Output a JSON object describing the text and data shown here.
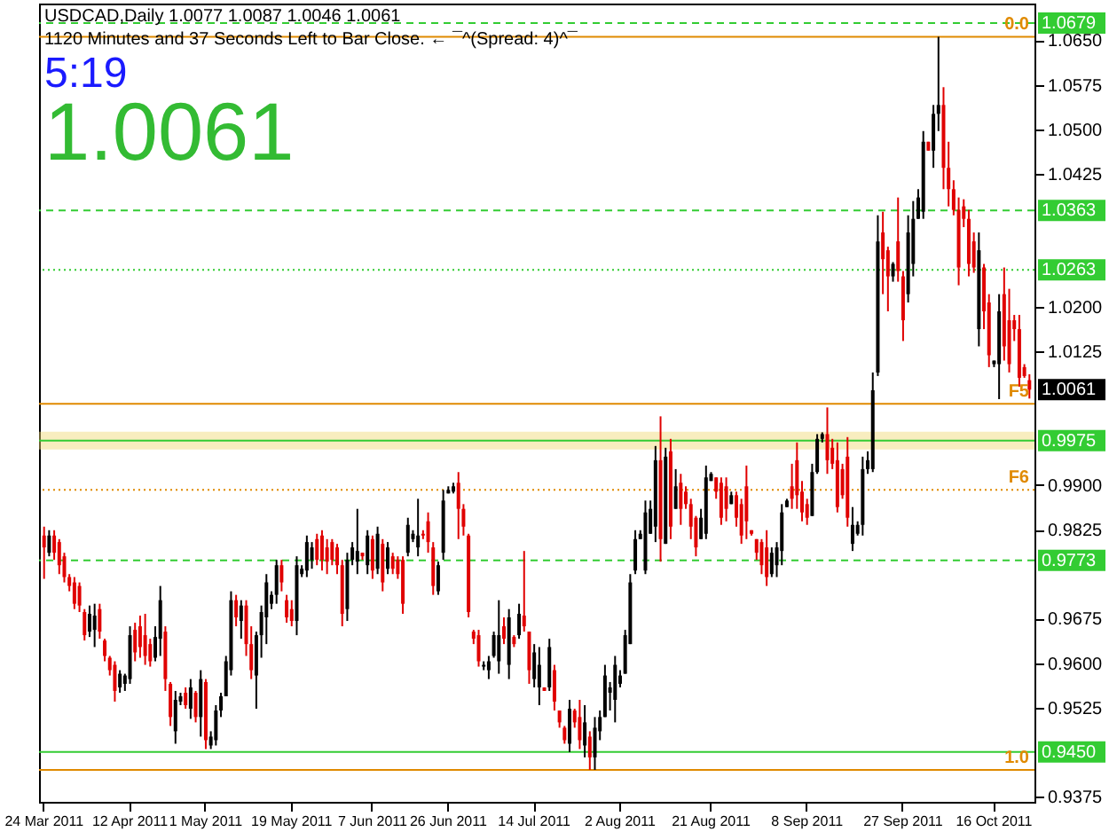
{
  "chart_data": {
    "type": "candlestick",
    "title": "USDCAD,Daily  1.0077 1.0087 1.0046 1.0061",
    "subtitle": "1120 Minutes and 37 Seconds Left to Bar Close. ← ¯^(Spread: 4)^¯",
    "annotations": [
      "5:19",
      "1.0061",
      {
        "text": "1.0061",
        "y": 1.0061
      },
      {
        "text": "0.0",
        "y": 1.0656
      },
      {
        "text": "F5",
        "y": 1.0037
      },
      {
        "text": "F6",
        "y": 0.9892
      },
      {
        "text": "1.0",
        "y": 0.942
      }
    ],
    "categories": [
      "24 Mar 2011",
      null,
      null,
      null,
      null,
      null,
      null,
      null,
      null,
      null,
      null,
      null,
      null,
      null,
      null,
      null,
      null,
      "12 Apr 2011",
      null,
      null,
      null,
      null,
      null,
      null,
      null,
      null,
      null,
      null,
      null,
      null,
      null,
      null,
      "1 May 2011",
      null,
      null,
      null,
      null,
      null,
      null,
      null,
      null,
      null,
      null,
      null,
      null,
      null,
      null,
      null,
      null,
      "19 May 2011",
      null,
      null,
      null,
      null,
      null,
      null,
      null,
      null,
      null,
      null,
      null,
      null,
      null,
      null,
      null,
      "7 Jun 2011",
      null,
      null,
      null,
      null,
      null,
      null,
      null,
      null,
      null,
      null,
      null,
      null,
      null,
      null,
      "26 Jun 2011",
      null,
      null,
      null,
      null,
      null,
      null,
      null,
      null,
      null,
      null,
      null,
      null,
      null,
      null,
      null,
      null,
      "14 Jul 2011",
      null,
      null,
      null,
      null,
      null,
      null,
      null,
      null,
      null,
      null,
      null,
      null,
      null,
      null,
      null,
      null,
      "2 Aug 2011",
      null,
      null,
      null,
      null,
      null,
      null,
      null,
      null,
      null,
      null,
      null,
      null,
      null,
      null,
      null,
      null,
      null,
      "21 Aug 2011",
      null,
      null,
      null,
      null,
      null,
      null,
      null,
      null,
      null,
      null,
      null,
      null,
      null,
      null,
      null,
      null,
      null,
      null,
      "8 Sep 2011",
      null,
      null,
      null,
      null,
      null,
      null,
      null,
      null,
      null,
      null,
      null,
      null,
      null,
      null,
      null,
      null,
      null,
      null,
      "27 Sep 2011",
      null,
      null,
      null,
      null,
      null,
      null,
      null,
      null,
      null,
      null,
      null,
      null,
      null,
      null,
      null,
      null,
      null,
      "16 Oct 2011",
      null,
      null,
      null,
      null,
      null,
      null,
      null
    ],
    "ohlc": [
      [
        0.9815,
        0.983,
        0.9742,
        0.9795
      ],
      [
        0.9786,
        0.9824,
        0.978,
        0.9815
      ],
      [
        0.9815,
        0.9824,
        0.9774,
        0.9786
      ],
      [
        0.9804,
        0.9809,
        0.975,
        0.9765
      ],
      [
        0.978,
        0.9786,
        0.9736,
        0.9745
      ],
      [
        0.9745,
        0.975,
        0.9721,
        0.973
      ],
      [
        0.9736,
        0.9745,
        0.9691,
        0.97
      ],
      [
        0.973,
        0.9736,
        0.9686,
        0.9697
      ],
      [
        0.9686,
        0.9691,
        0.9638,
        0.9647
      ],
      [
        0.9653,
        0.9697,
        0.9644,
        0.9683
      ],
      [
        0.9656,
        0.97,
        0.9627,
        0.968
      ],
      [
        0.9691,
        0.97,
        0.9641,
        0.9653
      ],
      [
        0.9638,
        0.9641,
        0.9603,
        0.9612
      ],
      [
        0.9609,
        0.9612,
        0.9579,
        0.9588
      ],
      [
        0.9597,
        0.9603,
        0.9535,
        0.9553
      ],
      [
        0.9559,
        0.9588,
        0.955,
        0.9582
      ],
      [
        0.9565,
        0.9582,
        0.9553,
        0.9579
      ],
      [
        0.9573,
        0.9662,
        0.9565,
        0.9647
      ],
      [
        0.9656,
        0.9668,
        0.9603,
        0.9618
      ],
      [
        0.9662,
        0.968,
        0.9609,
        0.9627
      ],
      [
        0.9647,
        0.9683,
        0.9597,
        0.9612
      ],
      [
        0.9632,
        0.9641,
        0.9594,
        0.9603
      ],
      [
        0.9609,
        0.9662,
        0.9603,
        0.9644
      ],
      [
        0.9641,
        0.973,
        0.9612,
        0.9706
      ],
      [
        0.9653,
        0.9662,
        0.9553,
        0.9573
      ],
      [
        0.9565,
        0.9568,
        0.9494,
        0.9509
      ],
      [
        0.9485,
        0.9553,
        0.9464,
        0.9538
      ],
      [
        0.9535,
        0.955,
        0.9529,
        0.9544
      ],
      [
        0.955,
        0.9559,
        0.9523,
        0.9529
      ],
      [
        0.9523,
        0.9573,
        0.9506,
        0.9559
      ],
      [
        0.955,
        0.9553,
        0.95,
        0.9509
      ],
      [
        0.9509,
        0.9588,
        0.9476,
        0.9573
      ],
      [
        0.9568,
        0.9573,
        0.9455,
        0.947
      ],
      [
        0.9461,
        0.9485,
        0.9455,
        0.9476
      ],
      [
        0.947,
        0.9529,
        0.9461,
        0.952
      ],
      [
        0.952,
        0.955,
        0.9509,
        0.9544
      ],
      [
        0.9544,
        0.9612,
        0.9544,
        0.9603
      ],
      [
        0.9588,
        0.9721,
        0.9579,
        0.9706
      ],
      [
        0.9706,
        0.9715,
        0.9662,
        0.9677
      ],
      [
        0.9671,
        0.9706,
        0.9641,
        0.9697
      ],
      [
        0.9697,
        0.9706,
        0.9612,
        0.9632
      ],
      [
        0.9632,
        0.9662,
        0.9573,
        0.9588
      ],
      [
        0.9579,
        0.9653,
        0.9523,
        0.9647
      ],
      [
        0.9647,
        0.9697,
        0.9609,
        0.9686
      ],
      [
        0.9677,
        0.975,
        0.9632,
        0.9736
      ],
      [
        0.97,
        0.9721,
        0.9691,
        0.9715
      ],
      [
        0.9715,
        0.9774,
        0.97,
        0.9765
      ],
      [
        0.9765,
        0.9774,
        0.9721,
        0.9736
      ],
      [
        0.9706,
        0.9715,
        0.9668,
        0.9677
      ],
      [
        0.9691,
        0.9706,
        0.9662,
        0.9671
      ],
      [
        0.9671,
        0.978,
        0.9647,
        0.9765
      ],
      [
        0.975,
        0.9765,
        0.9745,
        0.9759
      ],
      [
        0.9756,
        0.9815,
        0.9745,
        0.9804
      ],
      [
        0.9774,
        0.9804,
        0.9759,
        0.9795
      ],
      [
        0.9809,
        0.9818,
        0.9765,
        0.9774
      ],
      [
        0.9815,
        0.9824,
        0.9756,
        0.9774
      ],
      [
        0.9795,
        0.9809,
        0.975,
        0.9771
      ],
      [
        0.9804,
        0.9809,
        0.9765,
        0.9774
      ],
      [
        0.9795,
        0.9801,
        0.975,
        0.9765
      ],
      [
        0.9765,
        0.9774,
        0.9662,
        0.9683
      ],
      [
        0.9691,
        0.9786,
        0.9671,
        0.9774
      ],
      [
        0.9774,
        0.9804,
        0.9765,
        0.9795
      ],
      [
        0.9771,
        0.986,
        0.975,
        0.9789
      ],
      [
        0.9786,
        0.9786,
        0.9774,
        0.978
      ],
      [
        0.9765,
        0.9824,
        0.975,
        0.9815
      ],
      [
        0.9809,
        0.9815,
        0.9742,
        0.9756
      ],
      [
        0.9759,
        0.983,
        0.975,
        0.9818
      ],
      [
        0.9801,
        0.9809,
        0.9721,
        0.9736
      ],
      [
        0.9759,
        0.9804,
        0.975,
        0.9795
      ],
      [
        0.978,
        0.9786,
        0.975,
        0.9759
      ],
      [
        0.9774,
        0.978,
        0.9742,
        0.975
      ],
      [
        0.9774,
        0.978,
        0.9683,
        0.97
      ],
      [
        0.9786,
        0.9845,
        0.978,
        0.9833
      ],
      [
        0.9809,
        0.9824,
        0.9804,
        0.9818
      ],
      [
        0.9795,
        0.9877,
        0.978,
        0.9815
      ],
      [
        0.9818,
        0.9824,
        0.9809,
        0.9815
      ],
      [
        0.9839,
        0.9854,
        0.9786,
        0.9804
      ],
      [
        0.9795,
        0.9804,
        0.9715,
        0.973
      ],
      [
        0.9721,
        0.9771,
        0.9715,
        0.9765
      ],
      [
        0.9786,
        0.9892,
        0.9774,
        0.9874
      ],
      [
        0.9886,
        0.9898,
        0.9886,
        0.9892
      ],
      [
        0.9889,
        0.9904,
        0.9886,
        0.9898
      ],
      [
        0.9904,
        0.9922,
        0.9809,
        0.986
      ],
      [
        0.986,
        0.9868,
        0.9815,
        0.983
      ],
      [
        0.9815,
        0.9818,
        0.9677,
        0.9686
      ],
      [
        0.9653,
        0.9656,
        0.9632,
        0.9641
      ],
      [
        0.9647,
        0.9656,
        0.9594,
        0.9603
      ],
      [
        0.9594,
        0.9603,
        0.9588,
        0.9597
      ],
      [
        0.9588,
        0.9612,
        0.9573,
        0.9603
      ],
      [
        0.9612,
        0.9653,
        0.9609,
        0.9647
      ],
      [
        0.9603,
        0.9706,
        0.9582,
        0.9647
      ],
      [
        0.9662,
        0.9677,
        0.9632,
        0.9641
      ],
      [
        0.9597,
        0.9691,
        0.9573,
        0.9677
      ],
      [
        0.9644,
        0.9647,
        0.9627,
        0.9632
      ],
      [
        0.9647,
        0.97,
        0.9641,
        0.9683
      ],
      [
        0.968,
        0.9789,
        0.9653,
        0.9662
      ],
      [
        0.9653,
        0.9653,
        0.9565,
        0.9588
      ],
      [
        0.9573,
        0.9632,
        0.9559,
        0.9618
      ],
      [
        0.9559,
        0.9627,
        0.9529,
        0.9597
      ],
      [
        0.9559,
        0.9559,
        0.9553,
        0.9553
      ],
      [
        0.9559,
        0.9641,
        0.9553,
        0.9627
      ],
      [
        0.9588,
        0.9597,
        0.952,
        0.9535
      ],
      [
        0.952,
        0.952,
        0.9491,
        0.95
      ],
      [
        0.9491,
        0.9494,
        0.9464,
        0.947
      ],
      [
        0.9464,
        0.9538,
        0.945,
        0.9523
      ],
      [
        0.952,
        0.9523,
        0.9491,
        0.95
      ],
      [
        0.9509,
        0.9538,
        0.9455,
        0.947
      ],
      [
        0.9461,
        0.9529,
        0.9441,
        0.95
      ],
      [
        0.9476,
        0.9485,
        0.942,
        0.9441
      ],
      [
        0.9441,
        0.9509,
        0.942,
        0.9491
      ],
      [
        0.9485,
        0.952,
        0.947,
        0.9509
      ],
      [
        0.9509,
        0.9597,
        0.9509,
        0.9579
      ],
      [
        0.955,
        0.9568,
        0.952,
        0.9559
      ],
      [
        0.9538,
        0.9612,
        0.95,
        0.9597
      ],
      [
        0.9565,
        0.9588,
        0.9559,
        0.9579
      ],
      [
        0.9582,
        0.9656,
        0.9582,
        0.9647
      ],
      [
        0.9632,
        0.975,
        0.9632,
        0.9736
      ],
      [
        0.9756,
        0.9824,
        0.975,
        0.9809
      ],
      [
        0.9809,
        0.9824,
        0.9809,
        0.9818
      ],
      [
        0.9756,
        0.9874,
        0.975,
        0.9854
      ],
      [
        0.9818,
        0.9874,
        0.9818,
        0.986
      ],
      [
        0.983,
        0.9966,
        0.9804,
        0.9942
      ],
      [
        0.9942,
        1.0016,
        0.9771,
        0.9809
      ],
      [
        0.9801,
        0.9963,
        0.9801,
        0.9948
      ],
      [
        0.9957,
        0.9978,
        0.9809,
        0.983
      ],
      [
        0.986,
        0.9927,
        0.986,
        0.9898
      ],
      [
        0.9904,
        0.9919,
        0.9833,
        0.986
      ],
      [
        0.9889,
        0.9898,
        0.986,
        0.9868
      ],
      [
        0.9868,
        0.9877,
        0.9809,
        0.983
      ],
      [
        0.9845,
        0.9848,
        0.978,
        0.9795
      ],
      [
        0.9809,
        0.986,
        0.9809,
        0.9845
      ],
      [
        0.9818,
        0.9933,
        0.9809,
        0.9913
      ],
      [
        0.9907,
        0.9922,
        0.9907,
        0.9919
      ],
      [
        0.9913,
        0.9913,
        0.9877,
        0.9889
      ],
      [
        0.9904,
        0.9913,
        0.9833,
        0.9845
      ],
      [
        0.9898,
        0.9913,
        0.9839,
        0.986
      ],
      [
        0.9868,
        0.9889,
        0.9868,
        0.9883
      ],
      [
        0.9883,
        0.9889,
        0.983,
        0.9845
      ],
      [
        0.9868,
        0.9877,
        0.9801,
        0.9815
      ],
      [
        0.9898,
        0.9933,
        0.9809,
        0.9839
      ],
      [
        0.9824,
        0.9824,
        0.9815,
        0.9818
      ],
      [
        0.9809,
        0.9809,
        0.9774,
        0.9786
      ],
      [
        0.9804,
        0.9809,
        0.975,
        0.9765
      ],
      [
        0.9795,
        0.9824,
        0.973,
        0.9745
      ],
      [
        0.975,
        0.9795,
        0.9745,
        0.9786
      ],
      [
        0.9765,
        0.9804,
        0.9745,
        0.9795
      ],
      [
        0.9789,
        0.9868,
        0.9765,
        0.9854
      ],
      [
        0.9863,
        0.9877,
        0.9863,
        0.9874
      ],
      [
        0.9898,
        0.9936,
        0.986,
        0.9877
      ],
      [
        0.9942,
        0.9972,
        0.986,
        0.9883
      ],
      [
        0.9889,
        0.9907,
        0.9839,
        0.9854
      ],
      [
        0.9868,
        0.9877,
        0.9833,
        0.9845
      ],
      [
        0.9848,
        0.9936,
        0.9848,
        0.9922
      ],
      [
        0.9922,
        0.9986,
        0.9919,
        0.9978
      ],
      [
        0.9978,
        0.9989,
        0.9972,
        0.9986
      ],
      [
        0.9986,
        1.0031,
        0.9919,
        0.9942
      ],
      [
        0.9963,
        0.9978,
        0.9927,
        0.9936
      ],
      [
        0.9942,
        0.9972,
        0.9854,
        0.9863
      ],
      [
        0.9927,
        0.9936,
        0.9877,
        0.9883
      ],
      [
        0.9948,
        0.9981,
        0.983,
        0.9845
      ],
      [
        0.9801,
        0.9863,
        0.9789,
        0.9833
      ],
      [
        0.9818,
        0.9839,
        0.9815,
        0.9833
      ],
      [
        0.9833,
        0.9948,
        0.9815,
        0.9927
      ],
      [
        0.9927,
        0.9957,
        0.9919,
        0.9942
      ],
      [
        0.9927,
        1.009,
        0.9922,
        1.006
      ],
      [
        1.009,
        1.0355,
        1.0084,
        1.0311
      ],
      [
        1.0326,
        1.0361,
        1.0222,
        1.0281
      ],
      [
        1.0296,
        1.0302,
        1.0193,
        1.0252
      ],
      [
        1.0252,
        1.0276,
        1.0243,
        1.0273
      ],
      [
        1.0311,
        1.0385,
        1.0243,
        1.0261
      ],
      [
        1.0252,
        1.0261,
        1.0143,
        1.0178
      ],
      [
        1.0222,
        1.0355,
        1.0208,
        1.0326
      ],
      [
        1.0273,
        1.0379,
        1.0252,
        1.0349
      ],
      [
        1.0349,
        1.0399,
        1.0349,
        1.0385
      ],
      [
        1.0361,
        1.0497,
        1.0349,
        1.0479
      ],
      [
        1.0479,
        1.0479,
        1.0464,
        1.0464
      ],
      [
        1.0464,
        1.0541,
        1.0435,
        1.0526
      ],
      [
        1.0526,
        1.0656,
        1.0497,
        1.0541
      ],
      [
        1.0541,
        1.0571,
        1.0399,
        1.0435
      ],
      [
        1.0435,
        1.0479,
        1.037,
        1.0399
      ],
      [
        1.0399,
        1.0414,
        1.0355,
        1.0364
      ],
      [
        1.0364,
        1.0385,
        1.0237,
        1.0267
      ],
      [
        1.037,
        1.0382,
        1.0335,
        1.0349
      ],
      [
        1.0349,
        1.0364,
        1.0252,
        1.0273
      ],
      [
        1.0311,
        1.0326,
        1.0258,
        1.0267
      ],
      [
        1.0163,
        1.0326,
        1.0134,
        1.0296
      ],
      [
        1.0267,
        1.0273,
        1.0163,
        1.0193
      ],
      [
        1.0208,
        1.0222,
        1.0099,
        1.0119
      ],
      [
        1.0104,
        1.011,
        1.0099,
        1.011
      ],
      [
        1.0104,
        1.0222,
        1.0045,
        1.0193
      ],
      [
        1.0222,
        1.0267,
        1.011,
        1.0134
      ],
      [
        1.0178,
        1.0231,
        1.009,
        1.0104
      ],
      [
        1.0178,
        1.0187,
        1.0143,
        1.0163
      ],
      [
        1.0163,
        1.0187,
        1.0066,
        1.0081
      ],
      [
        1.0099,
        1.0104,
        1.0081,
        1.0084
      ],
      [
        1.0077,
        1.0087,
        1.0046,
        1.0061
      ]
    ],
    "colors": [
      "#e00000",
      "#000000",
      "#e00000",
      "#e00000",
      "#e00000",
      "#e00000",
      "#e00000",
      "#e00000",
      "#e00000",
      "#000000",
      "#000000",
      "#e00000",
      "#e00000",
      "#e00000",
      "#e00000",
      "#000000",
      "#000000",
      "#000000",
      "#e00000",
      "#e00000",
      "#e00000",
      "#e00000",
      "#000000",
      "#000000",
      "#e00000",
      "#e00000",
      "#000000",
      "#000000",
      "#e00000",
      "#000000",
      "#e00000",
      "#000000",
      "#e00000",
      "#000000",
      "#000000",
      "#000000",
      "#000000",
      "#000000",
      "#e00000",
      "#000000",
      "#e00000",
      "#e00000",
      "#000000",
      "#000000",
      "#000000",
      "#000000",
      "#000000",
      "#e00000",
      "#e00000",
      "#e00000",
      "#000000",
      "#000000",
      "#000000",
      "#000000",
      "#e00000",
      "#e00000",
      "#e00000",
      "#e00000",
      "#e00000",
      "#e00000",
      "#000000",
      "#000000",
      "#000000",
      "#e00000",
      "#000000",
      "#e00000",
      "#000000",
      "#e00000",
      "#000000",
      "#e00000",
      "#e00000",
      "#e00000",
      "#000000",
      "#000000",
      "#000000",
      "#e00000",
      "#e00000",
      "#e00000",
      "#000000",
      "#000000",
      "#000000",
      "#000000",
      "#e00000",
      "#e00000",
      "#e00000",
      "#e00000",
      "#e00000",
      "#000000",
      "#000000",
      "#000000",
      "#000000",
      "#e00000",
      "#000000",
      "#e00000",
      "#000000",
      "#e00000",
      "#e00000",
      "#000000",
      "#000000",
      "#e00000",
      "#000000",
      "#e00000",
      "#e00000",
      "#e00000",
      "#000000",
      "#e00000",
      "#e00000",
      "#000000",
      "#e00000",
      "#000000",
      "#000000",
      "#000000",
      "#000000",
      "#000000",
      "#000000",
      "#000000",
      "#000000",
      "#000000",
      "#000000",
      "#000000",
      "#000000",
      "#000000",
      "#e00000",
      "#000000",
      "#e00000",
      "#000000",
      "#e00000",
      "#e00000",
      "#e00000",
      "#e00000",
      "#000000",
      "#000000",
      "#000000",
      "#e00000",
      "#e00000",
      "#e00000",
      "#000000",
      "#e00000",
      "#e00000",
      "#e00000",
      "#e00000",
      "#e00000",
      "#e00000",
      "#e00000",
      "#000000",
      "#000000",
      "#000000",
      "#000000",
      "#e00000",
      "#e00000",
      "#e00000",
      "#e00000",
      "#000000",
      "#000000",
      "#000000",
      "#e00000",
      "#e00000",
      "#e00000",
      "#e00000",
      "#e00000",
      "#000000",
      "#000000",
      "#000000",
      "#000000",
      "#000000",
      "#000000",
      "#e00000",
      "#e00000",
      "#000000",
      "#e00000",
      "#e00000",
      "#000000",
      "#000000",
      "#000000",
      "#000000",
      "#e00000",
      "#000000",
      "#000000",
      "#e00000",
      "#e00000",
      "#e00000",
      "#e00000",
      "#e00000",
      "#e00000",
      "#e00000",
      "#000000",
      "#e00000",
      "#e00000",
      "#000000",
      "#000000",
      "#e00000",
      "#e00000",
      "#e00000",
      "#e00000",
      "#e00000",
      "#e00000"
    ],
    "ylim": [
      0.9366,
      1.0712
    ],
    "yticks": [
      {
        "value": 1.065,
        "label": "1.0650"
      },
      1.0575,
      {
        "value": 1.05,
        "label": "1.0500"
      },
      1.0425,
      {
        "value": 1.02,
        "label": "1.0200"
      },
      1.0125,
      {
        "value": 0.99,
        "label": "0.9900"
      },
      0.9825,
      0.9675,
      {
        "value": 0.96,
        "label": "0.9600"
      },
      0.9525,
      0.9375
    ],
    "ref_lines": [
      {
        "axis": "y",
        "value": 1.0679,
        "label": "1.0679",
        "color": "#33cc33",
        "line_style": "dashed"
      },
      {
        "axis": "y",
        "value": 1.0363,
        "label": "1.0363",
        "color": "#33cc33",
        "line_style": "dashed"
      },
      {
        "axis": "y",
        "value": 1.0263,
        "label": "1.0263",
        "color": "#33cc33",
        "line_style": "dotted"
      },
      {
        "axis": "y",
        "value": 0.9975,
        "label": "0.9975",
        "color": "#33cc33",
        "line_style": "solid"
      },
      {
        "axis": "y",
        "value": 0.9773,
        "label": "0.9773",
        "color": "#33cc33",
        "line_style": "dashed"
      },
      {
        "axis": "y",
        "value": 0.945,
        "label": "0.9450",
        "color": "#33cc33",
        "line_style": "solid"
      },
      {
        "axis": "y",
        "value": 1.0656,
        "color": "#e08a00",
        "line_style": "solid"
      },
      {
        "axis": "y",
        "value": 1.0037,
        "color": "#e08a00",
        "line_style": "solid"
      },
      {
        "axis": "y",
        "value": 0.9892,
        "color": "#e08a00",
        "line_style": "dotted"
      },
      {
        "axis": "y",
        "value": 0.942,
        "color": "#e08a00",
        "line_style": "solid"
      }
    ],
    "bands": [
      {
        "axis": "y",
        "from": 0.996,
        "to": 0.999,
        "color": "#f0d870"
      }
    ]
  }
}
